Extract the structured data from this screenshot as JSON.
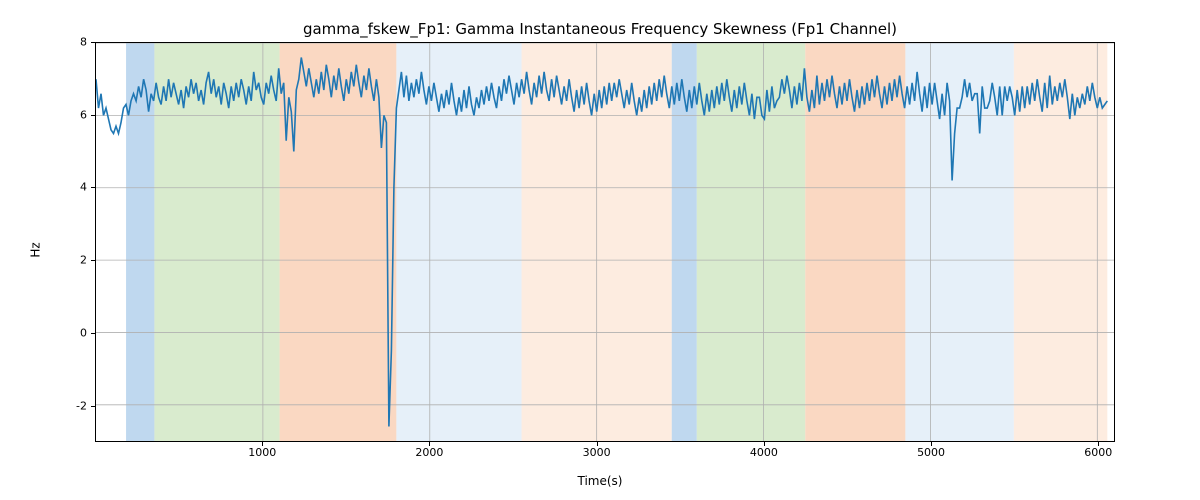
{
  "title": "gamma_fskew_Fp1: Gamma Instantaneous Frequency Skewness (Fp1 Channel)",
  "xlabel": "Time(s)",
  "ylabel": "Hz",
  "chart": {
    "type": "line",
    "xlim": [
      0,
      6100
    ],
    "ylim": [
      -3,
      8
    ],
    "xtick_step": 1000,
    "xticks": [
      1000,
      2000,
      3000,
      4000,
      5000,
      6000
    ],
    "yticks": [
      -2,
      0,
      2,
      4,
      6,
      8
    ],
    "background_color": "#ffffff",
    "grid_color": "#b0b0b0",
    "grid_width": 0.8,
    "line_color": "#1f77b4",
    "line_width": 1.6,
    "title_fontsize": 15,
    "label_fontsize": 12,
    "tick_fontsize": 11,
    "bands": [
      {
        "xstart": 180,
        "xend": 350,
        "color": "#9dc3e6",
        "opacity": 0.65
      },
      {
        "xstart": 350,
        "xend": 1100,
        "color": "#c5e0b4",
        "opacity": 0.65
      },
      {
        "xstart": 1100,
        "xend": 1800,
        "color": "#f8cbad",
        "opacity": 0.75
      },
      {
        "xstart": 1800,
        "xend": 2550,
        "color": "#deebf7",
        "opacity": 0.75
      },
      {
        "xstart": 2550,
        "xend": 3450,
        "color": "#fce5d6",
        "opacity": 0.75
      },
      {
        "xstart": 3450,
        "xend": 3600,
        "color": "#9dc3e6",
        "opacity": 0.65
      },
      {
        "xstart": 3600,
        "xend": 4250,
        "color": "#c5e0b4",
        "opacity": 0.65
      },
      {
        "xstart": 4250,
        "xend": 4850,
        "color": "#f8cbad",
        "opacity": 0.75
      },
      {
        "xstart": 4850,
        "xend": 5500,
        "color": "#deebf7",
        "opacity": 0.75
      },
      {
        "xstart": 5500,
        "xend": 6060,
        "color": "#fce5d6",
        "opacity": 0.75
      }
    ],
    "series": {
      "x_step": 15,
      "y": [
        7.0,
        6.2,
        6.6,
        6.0,
        6.2,
        5.9,
        5.6,
        5.5,
        5.7,
        5.5,
        5.8,
        6.2,
        6.3,
        6.0,
        6.4,
        6.6,
        6.4,
        6.8,
        6.5,
        7.0,
        6.7,
        6.1,
        6.6,
        6.4,
        6.9,
        6.5,
        6.3,
        6.8,
        6.4,
        7.0,
        6.5,
        6.9,
        6.6,
        6.3,
        6.7,
        6.2,
        6.8,
        6.5,
        7.0,
        6.6,
        6.9,
        6.4,
        6.7,
        6.3,
        6.9,
        7.2,
        6.6,
        7.0,
        6.5,
        6.8,
        6.3,
        6.9,
        6.6,
        6.2,
        6.8,
        6.4,
        6.9,
        6.5,
        7.0,
        6.7,
        6.3,
        6.8,
        6.4,
        7.2,
        6.7,
        6.9,
        6.5,
        6.3,
        6.9,
        6.6,
        7.1,
        6.7,
        6.4,
        7.3,
        6.6,
        6.9,
        5.3,
        6.5,
        6.1,
        5.0,
        6.7,
        7.0,
        7.6,
        7.2,
        6.8,
        7.3,
        6.9,
        6.5,
        7.0,
        6.6,
        7.2,
        6.7,
        7.4,
        7.0,
        6.5,
        7.1,
        6.7,
        7.3,
        6.8,
        6.4,
        7.0,
        6.6,
        7.2,
        6.8,
        7.4,
        6.9,
        6.5,
        7.1,
        6.7,
        7.3,
        6.8,
        6.4,
        7.0,
        6.5,
        5.1,
        6.0,
        5.8,
        -2.6,
        -0.5,
        4.0,
        6.2,
        6.7,
        7.2,
        6.5,
        7.1,
        6.4,
        6.9,
        6.5,
        7.0,
        6.6,
        7.2,
        6.7,
        6.3,
        6.8,
        6.4,
        6.9,
        6.5,
        6.1,
        6.6,
        6.2,
        6.7,
        6.3,
        6.9,
        6.4,
        6.0,
        6.5,
        6.1,
        6.7,
        6.2,
        6.8,
        6.3,
        6.0,
        6.5,
        6.2,
        6.7,
        6.3,
        6.8,
        6.4,
        6.9,
        6.5,
        6.2,
        6.8,
        6.4,
        7.0,
        6.6,
        7.1,
        6.7,
        6.3,
        6.9,
        6.5,
        7.0,
        6.6,
        7.2,
        6.7,
        6.3,
        6.9,
        6.5,
        7.1,
        6.6,
        7.2,
        6.7,
        6.4,
        7.0,
        6.5,
        7.1,
        6.7,
        6.3,
        6.8,
        6.4,
        7.0,
        6.5,
        6.1,
        6.7,
        6.2,
        6.8,
        6.3,
        6.9,
        6.4,
        6.0,
        6.6,
        6.1,
        6.7,
        6.2,
        6.8,
        6.3,
        6.9,
        6.4,
        6.9,
        6.5,
        7.0,
        6.6,
        6.2,
        6.7,
        6.3,
        6.9,
        6.4,
        6.0,
        6.5,
        6.1,
        6.7,
        6.2,
        6.8,
        6.3,
        6.9,
        6.4,
        7.0,
        6.5,
        7.1,
        6.6,
        6.2,
        6.8,
        6.3,
        6.9,
        6.4,
        7.0,
        6.5,
        6.1,
        6.7,
        6.2,
        6.8,
        6.3,
        6.9,
        6.4,
        6.0,
        6.6,
        6.1,
        6.7,
        6.2,
        6.8,
        6.3,
        6.9,
        6.4,
        7.0,
        6.5,
        6.1,
        6.7,
        6.2,
        6.8,
        6.3,
        6.9,
        6.4,
        6.0,
        6.6,
        5.9,
        6.5,
        6.5,
        6.0,
        5.9,
        6.7,
        6.1,
        6.8,
        6.2,
        6.4,
        6.5,
        7.0,
        6.6,
        7.1,
        6.7,
        6.2,
        6.8,
        6.3,
        6.9,
        6.4,
        7.3,
        6.5,
        6.1,
        6.7,
        6.2,
        7.1,
        6.3,
        6.9,
        6.4,
        7.0,
        6.5,
        7.1,
        6.6,
        6.2,
        6.8,
        6.3,
        6.9,
        6.4,
        7.0,
        6.5,
        6.1,
        6.7,
        6.2,
        6.8,
        6.3,
        6.9,
        6.4,
        7.0,
        6.5,
        7.1,
        6.6,
        6.2,
        6.8,
        6.3,
        6.9,
        6.4,
        7.0,
        6.5,
        7.1,
        6.6,
        6.2,
        6.8,
        6.3,
        6.9,
        6.4,
        7.2,
        6.6,
        6.1,
        6.8,
        6.2,
        6.9,
        6.3,
        6.9,
        6.4,
        5.9,
        6.6,
        6.0,
        6.9,
        6.4,
        4.2,
        5.5,
        6.2,
        6.2,
        6.5,
        7.0,
        6.5,
        6.9,
        6.4,
        6.6,
        6.6,
        5.5,
        6.8,
        6.2,
        6.2,
        6.4,
        6.9,
        6.5,
        6.0,
        6.8,
        6.0,
        6.8,
        6.4,
        6.8,
        6.5,
        6.0,
        6.7,
        6.1,
        6.8,
        6.2,
        6.8,
        6.3,
        6.9,
        6.4,
        7.0,
        6.5,
        6.1,
        6.9,
        6.2,
        7.1,
        6.3,
        6.8,
        6.4,
        6.9,
        6.5,
        7.0,
        6.5,
        5.9,
        6.6,
        6.0,
        6.5,
        6.2,
        6.6,
        6.3,
        6.8,
        6.4,
        6.9,
        6.5,
        6.2,
        6.5,
        6.2,
        6.3,
        6.4
      ]
    }
  }
}
